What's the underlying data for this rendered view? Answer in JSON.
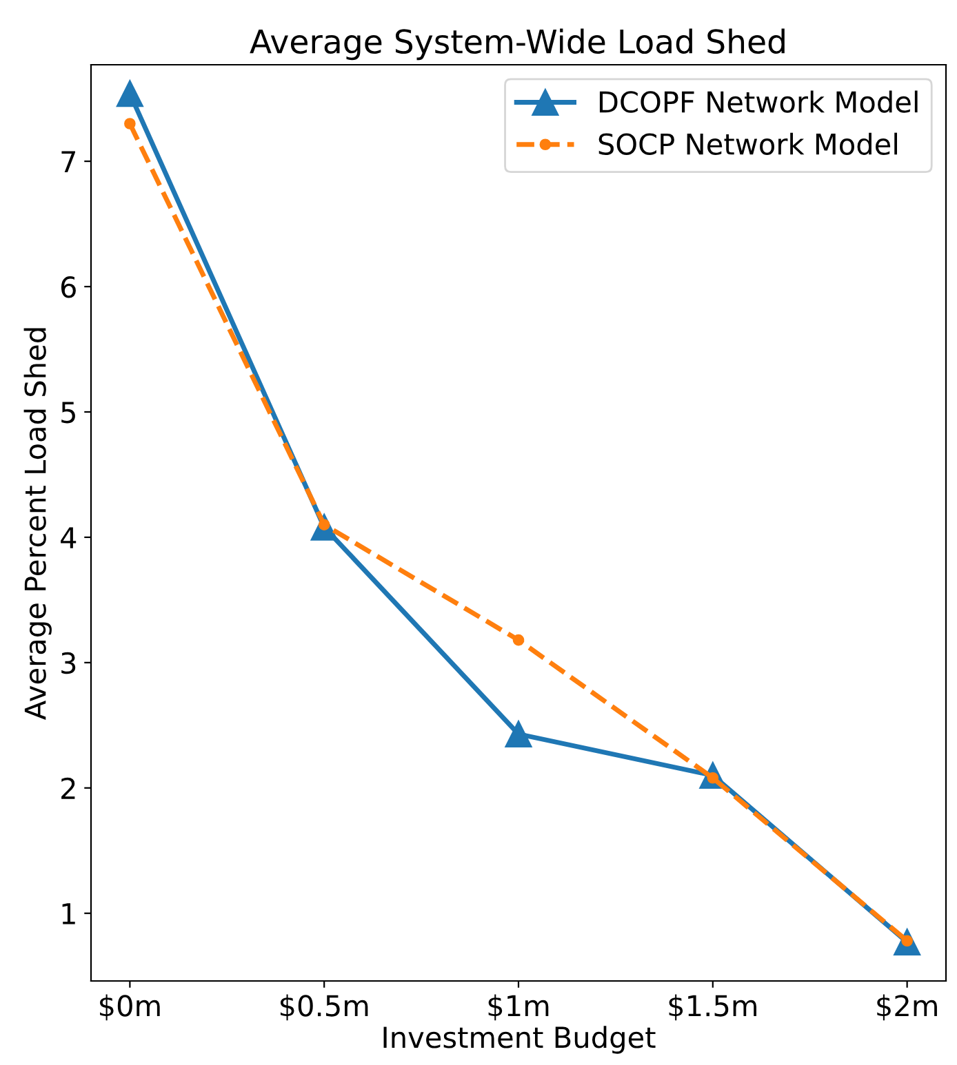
{
  "chart_data": {
    "type": "line",
    "title": "Average System-Wide Load Shed",
    "xlabel": "Investment Budget",
    "ylabel": "Average Percent Load Shed",
    "categories": [
      "$0m",
      "$0.5m",
      "$1m",
      "$1.5m",
      "$2m"
    ],
    "series": [
      {
        "name": "DCOPF Network Model",
        "color": "#1f77b4",
        "values": [
          7.54,
          4.08,
          2.43,
          2.1,
          0.77
        ],
        "marker": "triangle",
        "line_style": "solid"
      },
      {
        "name": "SOCP Network Model",
        "color": "#ff7f0e",
        "values": [
          7.3,
          4.1,
          3.18,
          2.08,
          0.78
        ],
        "marker": "circle",
        "line_style": "dashed"
      }
    ],
    "ylim": [
      0.46,
      7.77
    ],
    "yticks": [
      1,
      2,
      3,
      4,
      5,
      6,
      7
    ],
    "grid": false,
    "legend": "top right"
  }
}
